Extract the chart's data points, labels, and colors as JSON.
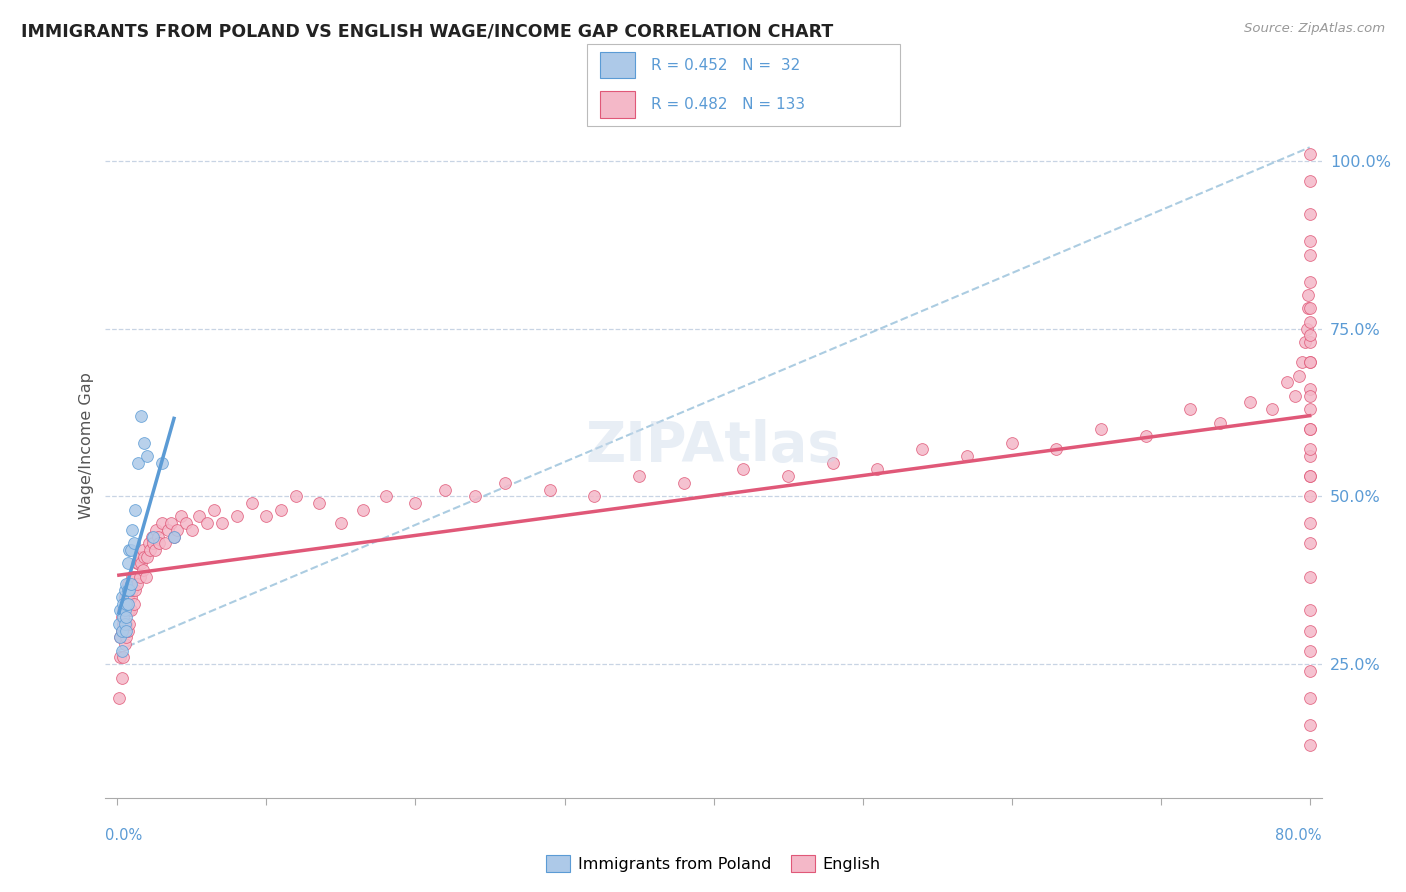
{
  "title": "IMMIGRANTS FROM POLAND VS ENGLISH WAGE/INCOME GAP CORRELATION CHART",
  "source": "Source: ZipAtlas.com",
  "ylabel": "Wage/Income Gap",
  "legend_blue_R": "0.452",
  "legend_blue_N": "32",
  "legend_pink_R": "0.482",
  "legend_pink_N": "133",
  "blue_fill": "#adc9e8",
  "blue_edge": "#5b9bd5",
  "pink_fill": "#f4b8c8",
  "pink_edge": "#e05878",
  "blue_line": "#5b9bd5",
  "pink_line": "#e05878",
  "dashed_line": "#90bcd8",
  "grid_color": "#c8d4e4",
  "text_color": "#222222",
  "source_color": "#999999",
  "axis_blue": "#5b9bd5",
  "blue_scatter_x": [
    0.001,
    0.002,
    0.002,
    0.003,
    0.003,
    0.003,
    0.004,
    0.004,
    0.005,
    0.005,
    0.005,
    0.006,
    0.006,
    0.006,
    0.006,
    0.007,
    0.007,
    0.007,
    0.008,
    0.008,
    0.009,
    0.009,
    0.01,
    0.011,
    0.012,
    0.014,
    0.016,
    0.018,
    0.02,
    0.024,
    0.03,
    0.038
  ],
  "blue_scatter_y": [
    0.31,
    0.33,
    0.29,
    0.35,
    0.3,
    0.27,
    0.34,
    0.32,
    0.36,
    0.33,
    0.31,
    0.37,
    0.34,
    0.32,
    0.3,
    0.4,
    0.36,
    0.34,
    0.42,
    0.36,
    0.42,
    0.37,
    0.45,
    0.43,
    0.48,
    0.55,
    0.62,
    0.58,
    0.56,
    0.44,
    0.55,
    0.44
  ],
  "pink_scatter_x": [
    0.001,
    0.002,
    0.002,
    0.003,
    0.003,
    0.003,
    0.004,
    0.004,
    0.004,
    0.005,
    0.005,
    0.005,
    0.005,
    0.006,
    0.006,
    0.006,
    0.007,
    0.007,
    0.007,
    0.007,
    0.008,
    0.008,
    0.008,
    0.009,
    0.009,
    0.01,
    0.01,
    0.011,
    0.011,
    0.012,
    0.013,
    0.013,
    0.014,
    0.015,
    0.015,
    0.016,
    0.017,
    0.017,
    0.018,
    0.019,
    0.02,
    0.021,
    0.022,
    0.023,
    0.024,
    0.025,
    0.026,
    0.027,
    0.028,
    0.03,
    0.032,
    0.034,
    0.036,
    0.038,
    0.04,
    0.043,
    0.046,
    0.05,
    0.055,
    0.06,
    0.065,
    0.07,
    0.08,
    0.09,
    0.1,
    0.11,
    0.12,
    0.135,
    0.15,
    0.165,
    0.18,
    0.2,
    0.22,
    0.24,
    0.26,
    0.29,
    0.32,
    0.35,
    0.38,
    0.42,
    0.45,
    0.48,
    0.51,
    0.54,
    0.57,
    0.6,
    0.63,
    0.66,
    0.69,
    0.72,
    0.74,
    0.76,
    0.775,
    0.785,
    0.79,
    0.793,
    0.795,
    0.797,
    0.798,
    0.799,
    0.799,
    0.8,
    0.8,
    0.8,
    0.8,
    0.8,
    0.8,
    0.8,
    0.8,
    0.8,
    0.8,
    0.8,
    0.8,
    0.8,
    0.8,
    0.8,
    0.8,
    0.8,
    0.8,
    0.8,
    0.8,
    0.8,
    0.8,
    0.8,
    0.8,
    0.8,
    0.8,
    0.8,
    0.8,
    0.8,
    0.8,
    0.8,
    0.8
  ],
  "pink_scatter_y": [
    0.2,
    0.26,
    0.29,
    0.23,
    0.3,
    0.32,
    0.26,
    0.31,
    0.33,
    0.28,
    0.3,
    0.33,
    0.35,
    0.29,
    0.31,
    0.34,
    0.3,
    0.33,
    0.35,
    0.37,
    0.31,
    0.33,
    0.36,
    0.33,
    0.35,
    0.36,
    0.38,
    0.34,
    0.38,
    0.36,
    0.4,
    0.37,
    0.4,
    0.38,
    0.41,
    0.4,
    0.39,
    0.42,
    0.41,
    0.38,
    0.41,
    0.43,
    0.42,
    0.44,
    0.43,
    0.42,
    0.45,
    0.44,
    0.43,
    0.46,
    0.43,
    0.45,
    0.46,
    0.44,
    0.45,
    0.47,
    0.46,
    0.45,
    0.47,
    0.46,
    0.48,
    0.46,
    0.47,
    0.49,
    0.47,
    0.48,
    0.5,
    0.49,
    0.46,
    0.48,
    0.5,
    0.49,
    0.51,
    0.5,
    0.52,
    0.51,
    0.5,
    0.53,
    0.52,
    0.54,
    0.53,
    0.55,
    0.54,
    0.57,
    0.56,
    0.58,
    0.57,
    0.6,
    0.59,
    0.63,
    0.61,
    0.64,
    0.63,
    0.67,
    0.65,
    0.68,
    0.7,
    0.73,
    0.75,
    0.78,
    0.8,
    0.88,
    0.53,
    0.56,
    0.6,
    0.63,
    0.66,
    0.7,
    0.73,
    0.76,
    0.3,
    0.33,
    0.38,
    0.43,
    0.46,
    0.5,
    0.53,
    0.57,
    0.6,
    0.65,
    0.24,
    0.27,
    0.2,
    0.16,
    0.13,
    0.7,
    0.74,
    0.78,
    0.82,
    0.86,
    0.92,
    0.97,
    1.01
  ]
}
